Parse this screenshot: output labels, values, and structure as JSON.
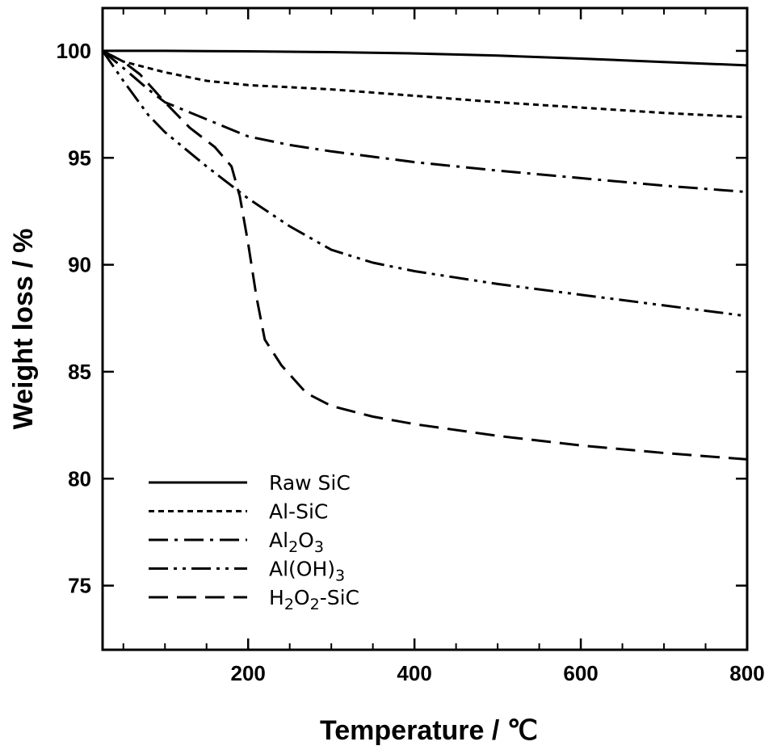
{
  "chart_data": {
    "type": "line",
    "xlabel": "Temperature / ℃",
    "ylabel": "Weight loss / %",
    "xlim": [
      25,
      800
    ],
    "ylim": [
      72,
      102
    ],
    "x_ticks": [
      200,
      400,
      600,
      800
    ],
    "x_tick_labels": [
      "200",
      "400",
      "600",
      "800"
    ],
    "y_ticks": [
      75,
      80,
      85,
      90,
      95,
      100
    ],
    "y_tick_labels": [
      "75",
      "80",
      "85",
      "90",
      "95",
      "100"
    ],
    "grid": false,
    "legend_position": "bottom-left",
    "series": [
      {
        "name": "Raw SiC",
        "name_main": "Raw SiC",
        "name_parts": [],
        "style": "solid",
        "x": [
          25,
          100,
          200,
          300,
          400,
          500,
          600,
          700,
          800
        ],
        "y": [
          100,
          100,
          99.98,
          99.94,
          99.88,
          99.78,
          99.64,
          99.48,
          99.32
        ]
      },
      {
        "name": "Al-SiC",
        "name_main": "Al-SiC",
        "name_parts": [],
        "style": "dotted",
        "x": [
          25,
          50,
          100,
          150,
          200,
          300,
          400,
          500,
          600,
          700,
          800
        ],
        "y": [
          100,
          99.5,
          99.0,
          98.6,
          98.4,
          98.2,
          97.9,
          97.6,
          97.35,
          97.1,
          96.9
        ]
      },
      {
        "name": "Al2O3",
        "name_main": "Al",
        "name_parts": [
          "Al",
          "2",
          "O",
          "3"
        ],
        "style": "dashdot",
        "x": [
          25,
          50,
          80,
          100,
          150,
          200,
          250,
          300,
          400,
          500,
          600,
          700,
          800
        ],
        "y": [
          100,
          99.2,
          98.2,
          97.6,
          96.8,
          96.0,
          95.6,
          95.3,
          94.8,
          94.4,
          94.05,
          93.7,
          93.4
        ]
      },
      {
        "name": "Al(OH)3",
        "name_main": "Al(OH)",
        "name_parts": [
          "Al(OH)",
          "3"
        ],
        "style": "dashdotdot",
        "x": [
          25,
          50,
          80,
          100,
          150,
          200,
          250,
          300,
          350,
          400,
          500,
          600,
          700,
          800
        ],
        "y": [
          100,
          98.6,
          97.0,
          96.2,
          94.6,
          93.1,
          91.8,
          90.7,
          90.1,
          89.7,
          89.1,
          88.6,
          88.1,
          87.6
        ]
      },
      {
        "name": "H2O2-SiC",
        "name_main": "H",
        "name_parts": [
          "H",
          "2",
          "O",
          "2",
          "-SiC"
        ],
        "style": "dashed",
        "x": [
          25,
          50,
          70,
          100,
          130,
          160,
          180,
          190,
          200,
          210,
          220,
          240,
          270,
          300,
          350,
          400,
          500,
          600,
          700,
          800
        ],
        "y": [
          100,
          99.5,
          98.9,
          97.6,
          96.4,
          95.5,
          94.6,
          93.2,
          91.0,
          88.5,
          86.5,
          85.3,
          84.0,
          83.4,
          82.9,
          82.55,
          82.0,
          81.55,
          81.2,
          80.9
        ]
      }
    ]
  }
}
